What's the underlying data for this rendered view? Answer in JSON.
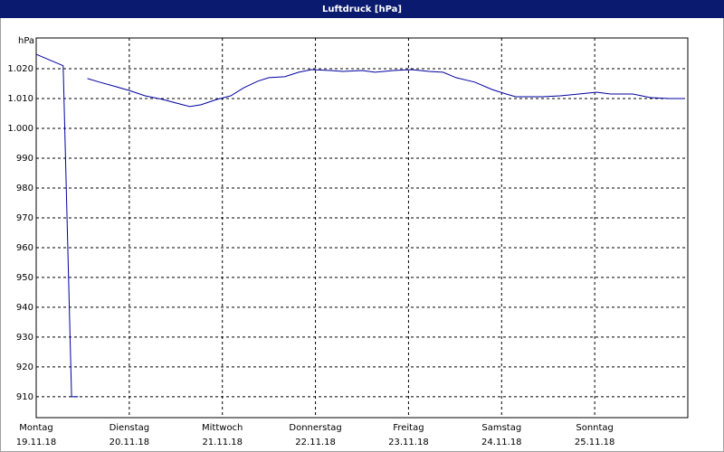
{
  "chart_data": {
    "type": "line",
    "title": "Luftdruck [hPa]",
    "ylabel": "hPa",
    "color": "#0000a0",
    "grid": true,
    "xlim": [
      0,
      7
    ],
    "ylim": [
      903,
      1030.3
    ],
    "xticks": [
      {
        "value": 0,
        "label": "Montag",
        "date": "19.11.18"
      },
      {
        "value": 1,
        "label": "Dienstag",
        "date": "20.11.18"
      },
      {
        "value": 2,
        "label": "Mittwoch",
        "date": "21.11.18"
      },
      {
        "value": 3,
        "label": "Donnerstag",
        "date": "22.11.18"
      },
      {
        "value": 4,
        "label": "Freitag",
        "date": "23.11.18"
      },
      {
        "value": 5,
        "label": "Samstag",
        "date": "24.11.18"
      },
      {
        "value": 6,
        "label": "Sonntag",
        "date": "25.11.18"
      }
    ],
    "yticks": [
      {
        "value": 1020,
        "label": "1.020"
      },
      {
        "value": 1010,
        "label": "1.010"
      },
      {
        "value": 1000,
        "label": "1.000"
      },
      990,
      980,
      970,
      960,
      950,
      940,
      930,
      920,
      910
    ],
    "x": [
      0,
      0.29,
      0.38,
      0.45,
      0.5,
      0.55,
      0.68,
      0.83,
      1.0,
      1.17,
      1.36,
      1.5,
      1.65,
      1.77,
      1.94,
      2.09,
      2.23,
      2.38,
      2.5,
      2.67,
      2.82,
      2.96,
      3.16,
      3.3,
      3.5,
      3.64,
      3.84,
      4.03,
      4.22,
      4.37,
      4.51,
      4.71,
      4.9,
      5.05,
      5.15,
      5.44,
      5.63,
      5.83,
      6.02,
      6.17,
      6.41,
      6.6,
      6.8,
      6.96
    ],
    "values": [
      1024.8,
      1021,
      910,
      910,
      null,
      1016.7,
      1015.5,
      1014.2,
      1012.7,
      1010.9,
      1009.7,
      1008.5,
      1007.3,
      1007.9,
      1009.7,
      1010.9,
      1013.6,
      1015.8,
      1017,
      1017.3,
      1018.8,
      1019.7,
      1019.4,
      1019.1,
      1019.4,
      1018.8,
      1019.4,
      1019.7,
      1019.1,
      1018.8,
      1017,
      1015.5,
      1013,
      1011.5,
      1010.6,
      1010.6,
      1010.9,
      1011.5,
      1012.1,
      1011.5,
      1011.5,
      1010.3,
      1010,
      1010
    ]
  }
}
